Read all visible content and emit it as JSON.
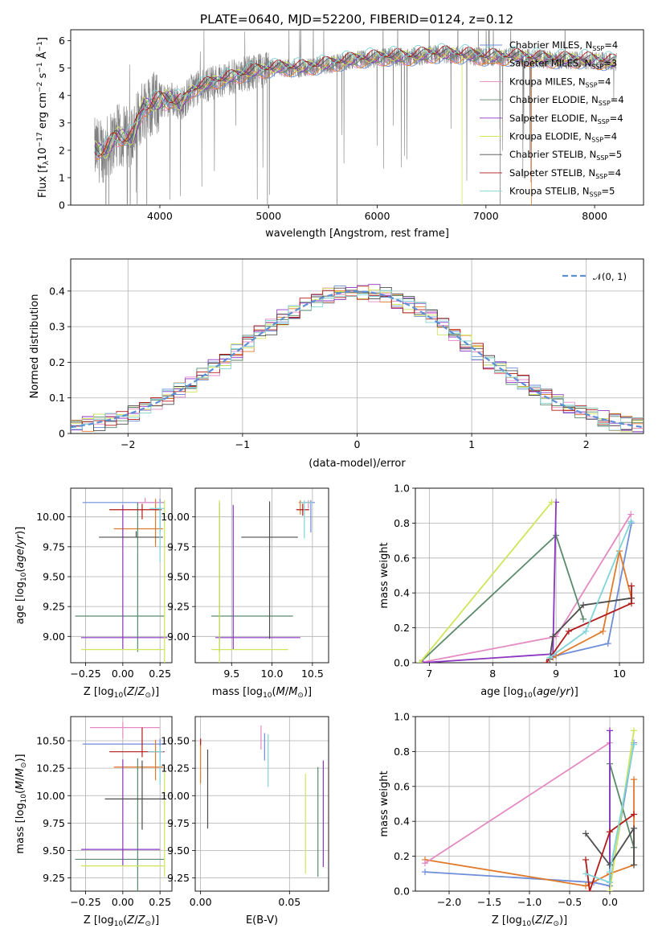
{
  "figure": {
    "title": "PLATE=0640, MJD=52200, FIBERID=0124, z=0.12"
  },
  "colors": [
    "#6f8ed8",
    "#e07a2b",
    "#e58ac3",
    "#5b8a6b",
    "#8b35c3",
    "#cfe55a",
    "#4d4d4d",
    "#b21a1a",
    "#7fd4d8"
  ],
  "spec_color": "#808080",
  "chart_data": [
    {
      "id": "spectrum",
      "type": "line",
      "title": "PLATE=0640, MJD=52200, FIBERID=0124, z=0.12",
      "xlabel": "wavelength [Angstrom, rest frame]",
      "ylabel": "Flux [f_λ 10^-17 erg cm^-2 s^-1 Å^-1]",
      "xlim": [
        3180,
        8450
      ],
      "ylim": [
        0,
        6.4
      ],
      "xticks": [
        4000,
        5000,
        6000,
        7000,
        8000
      ],
      "yticks": [
        0,
        1,
        2,
        3,
        4,
        5,
        6
      ],
      "legend": "top-right",
      "continuum_knots": [
        [
          3400,
          2.0
        ],
        [
          3500,
          2.0
        ],
        [
          3600,
          2.5
        ],
        [
          3750,
          2.5
        ],
        [
          3850,
          3.6
        ],
        [
          4100,
          3.9
        ],
        [
          4200,
          3.7
        ],
        [
          4300,
          4.2
        ],
        [
          4500,
          4.5
        ],
        [
          4700,
          4.7
        ],
        [
          4900,
          4.9
        ],
        [
          5100,
          5.0
        ],
        [
          5300,
          5.0
        ],
        [
          5500,
          5.1
        ],
        [
          5800,
          5.3
        ],
        [
          6100,
          5.4
        ],
        [
          6300,
          5.4
        ],
        [
          6500,
          5.5
        ],
        [
          6700,
          5.5
        ],
        [
          7000,
          5.4
        ],
        [
          7300,
          5.4
        ],
        [
          7600,
          5.3
        ],
        [
          7900,
          5.3
        ],
        [
          8200,
          5.2
        ]
      ],
      "series": [
        {
          "name": "Chabrier MILES, N_SSP=4"
        },
        {
          "name": "Salpeter MILES, N_SSP=3"
        },
        {
          "name": "Kroupa MILES, N_SSP=4"
        },
        {
          "name": "Chabrier ELODIE, N_SSP=4"
        },
        {
          "name": "Salpeter ELODIE, N_SSP=4"
        },
        {
          "name": "Kroupa ELODIE, N_SSP=4"
        },
        {
          "name": "Chabrier STELIB, N_SSP=5"
        },
        {
          "name": "Salpeter STELIB, N_SSP=4"
        },
        {
          "name": "Kroupa STELIB, N_SSP=5"
        }
      ]
    },
    {
      "id": "residuals",
      "type": "step",
      "xlabel": "(data-model)/error",
      "ylabel": "Normed distribution",
      "xlim": [
        -2.5,
        2.5
      ],
      "ylim": [
        0,
        0.49
      ],
      "xticks": [
        -2,
        -1,
        0,
        1,
        2
      ],
      "yticks": [
        0.0,
        0.1,
        0.2,
        0.3,
        0.4
      ],
      "grid": true,
      "legend": "top-right",
      "gaussian_label": "𝒩(0, 1)",
      "bin_width": 0.1
    },
    {
      "id": "age-Z",
      "type": "errorbar",
      "xlabel": "Z [log10(Z/Z⊙)]",
      "ylabel": "age [log10(age/yr)]",
      "xlim": [
        -0.35,
        0.33
      ],
      "ylim": [
        8.78,
        10.24
      ],
      "xticks": [
        -0.25,
        0.0,
        0.25
      ],
      "xtick_labels": [
        "−0.25",
        "0.00",
        "0.25"
      ],
      "yticks": [
        9.0,
        9.25,
        9.5,
        9.75,
        10.0
      ],
      "ytick_labels": [
        "9.00",
        "9.25",
        "9.50",
        "9.75",
        "10.00"
      ],
      "grid": true,
      "points": [
        {
          "x": 0.25,
          "y": 10.12,
          "xerr": [
            0.52,
            0.03
          ],
          "yerr": [
            0.25,
            0.03
          ]
        },
        {
          "x": 0.22,
          "y": 9.9,
          "xerr": [
            0.28,
            0.05
          ],
          "yerr": [
            0.15,
            0.25
          ]
        },
        {
          "x": 0.15,
          "y": 10.12,
          "xerr": [
            0.05,
            0.12
          ],
          "yerr": [
            0.0,
            0.04
          ]
        },
        {
          "x": 0.1,
          "y": 9.17,
          "xerr": [
            0.42,
            0.18
          ],
          "yerr": [
            0.3,
            0.95
          ]
        },
        {
          "x": 0.0,
          "y": 8.99,
          "xerr": [
            0.28,
            0.3
          ],
          "yerr": [
            0.1,
            1.11
          ]
        },
        {
          "x": 0.28,
          "y": 8.89,
          "xerr": [
            0.56,
            0.0
          ],
          "yerr": [
            0.15,
            1.25
          ]
        },
        {
          "x": 0.09,
          "y": 9.83,
          "xerr": [
            0.25,
            0.18
          ],
          "yerr": [
            0.0,
            0.05
          ]
        },
        {
          "x": 0.13,
          "y": 10.06,
          "xerr": [
            0.22,
            0.13
          ],
          "yerr": [
            0.08,
            0.05
          ]
        },
        {
          "x": 0.25,
          "y": 10.07,
          "xerr": [
            0.07,
            0.03
          ],
          "yerr": [
            0.45,
            0.05
          ]
        }
      ]
    },
    {
      "id": "age-mass",
      "type": "errorbar",
      "xlabel": "mass [log10(M/M⊙)]",
      "xlim": [
        9.05,
        10.7
      ],
      "ylim": [
        8.78,
        10.24
      ],
      "xticks": [
        9.5,
        10.0,
        10.5
      ],
      "xtick_labels": [
        "9.5",
        "10.0",
        "10.5"
      ],
      "yticks": [
        9.0,
        9.25,
        9.5,
        9.75,
        10.0
      ],
      "ytick_labels": [
        "9.00",
        "9.25",
        "9.50",
        "9.75",
        "10.00"
      ],
      "grid": true,
      "points": [
        {
          "x": 10.48,
          "y": 10.12,
          "xerr": [
            0.08,
            0.05
          ],
          "yerr": [
            0.25,
            0.02
          ]
        },
        {
          "x": 10.35,
          "y": 10.12,
          "xerr": [
            0.02,
            0.15
          ],
          "yerr": [
            0.1,
            0.02
          ]
        },
        {
          "x": 10.45,
          "y": 10.12,
          "xerr": [
            0.1,
            0.05
          ],
          "yerr": [
            0.05,
            0.02
          ]
        },
        {
          "x": 9.35,
          "y": 9.17,
          "xerr": [
            0.1,
            0.91
          ],
          "yerr": [
            0.3,
            0.95
          ]
        },
        {
          "x": 9.52,
          "y": 8.99,
          "xerr": [
            0.22,
            0.83
          ],
          "yerr": [
            0.1,
            1.11
          ]
        },
        {
          "x": 9.35,
          "y": 8.89,
          "xerr": [
            0.1,
            0.85
          ],
          "yerr": [
            0.11,
            1.25
          ]
        },
        {
          "x": 9.97,
          "y": 9.83,
          "xerr": [
            0.35,
            0.35
          ],
          "yerr": [
            0.85,
            0.3
          ]
        },
        {
          "x": 10.38,
          "y": 10.06,
          "xerr": [
            0.08,
            0.08
          ],
          "yerr": [
            0.05,
            0.05
          ]
        },
        {
          "x": 10.4,
          "y": 10.12,
          "xerr": [
            0.05,
            0.1
          ],
          "yerr": [
            0.3,
            0.02
          ]
        }
      ]
    },
    {
      "id": "mw-age",
      "type": "line",
      "xlabel": "age [log10(age/yr)]",
      "ylabel": "mass weight",
      "xlim": [
        6.78,
        10.38
      ],
      "ylim": [
        0,
        1.0
      ],
      "xticks": [
        7,
        8,
        9,
        10
      ],
      "xtick_labels": [
        "7",
        "8",
        "9",
        "10"
      ],
      "yticks": [
        0.0,
        0.2,
        0.4,
        0.6,
        0.8,
        1.0
      ],
      "ytick_labels": [
        "0.0",
        "0.2",
        "0.4",
        "0.6",
        "0.8",
        "1.0"
      ],
      "grid": true,
      "series": [
        {
          "points": [
            [
              9.0,
              0.04
            ],
            [
              9.82,
              0.11
            ],
            [
              10.19,
              0.8
            ]
          ]
        },
        {
          "points": [
            [
              8.95,
              0.03
            ],
            [
              9.74,
              0.18
            ],
            [
              10.0,
              0.64
            ],
            [
              10.19,
              0.37
            ]
          ]
        },
        {
          "points": [
            [
              6.85,
              0.0
            ],
            [
              9.0,
              0.15
            ],
            [
              10.18,
              0.85
            ]
          ]
        },
        {
          "points": [
            [
              6.85,
              0.0
            ],
            [
              9.0,
              0.73
            ],
            [
              9.43,
              0.25
            ]
          ]
        },
        {
          "points": [
            [
              6.9,
              0.0
            ],
            [
              8.95,
              0.05
            ],
            [
              9.0,
              0.92
            ]
          ]
        },
        {
          "points": [
            [
              6.85,
              0.0
            ],
            [
              8.93,
              0.92
            ]
          ]
        },
        {
          "points": [
            [
              8.9,
              0.02
            ],
            [
              8.95,
              0.15
            ],
            [
              9.43,
              0.33
            ],
            [
              10.19,
              0.37
            ]
          ]
        },
        {
          "points": [
            [
              8.85,
              0.0
            ],
            [
              9.2,
              0.18
            ],
            [
              10.19,
              0.34
            ],
            [
              10.19,
              0.44
            ]
          ]
        },
        {
          "points": [
            [
              8.9,
              0.03
            ],
            [
              9.47,
              0.18
            ],
            [
              10.18,
              0.81
            ]
          ]
        }
      ]
    },
    {
      "id": "mass-Z",
      "type": "errorbar",
      "xlabel": "Z [log10(Z/Z⊙)]",
      "ylabel": "mass [log10(M/M⊙)]",
      "xlim": [
        -0.35,
        0.33
      ],
      "ylim": [
        9.13,
        10.72
      ],
      "xticks": [
        -0.25,
        0.0,
        0.25
      ],
      "xtick_labels": [
        "−0.25",
        "0.00",
        "0.25"
      ],
      "yticks": [
        9.25,
        9.5,
        9.75,
        10.0,
        10.25,
        10.5
      ],
      "ytick_labels": [
        "9.25",
        "9.50",
        "9.75",
        "10.00",
        "10.25",
        "10.50"
      ],
      "grid": true,
      "points": [
        {
          "x": 0.25,
          "y": 10.47,
          "xerr": [
            0.52,
            0.03
          ],
          "yerr": [
            0.15,
            0.05
          ]
        },
        {
          "x": 0.22,
          "y": 10.26,
          "xerr": [
            0.28,
            0.05
          ],
          "yerr": [
            0.12,
            0.25
          ]
        },
        {
          "x": 0.0,
          "y": 10.62,
          "xerr": [
            0.22,
            0.25
          ],
          "yerr": [
            0.1,
            0.05
          ]
        },
        {
          "x": 0.1,
          "y": 9.42,
          "xerr": [
            0.42,
            0.18
          ],
          "yerr": [
            0.3,
            0.92
          ]
        },
        {
          "x": 0.0,
          "y": 9.51,
          "xerr": [
            0.28,
            0.25
          ],
          "yerr": [
            0.15,
            0.82
          ]
        },
        {
          "x": 0.28,
          "y": 9.36,
          "xerr": [
            0.56,
            0.0
          ],
          "yerr": [
            0.1,
            0.85
          ]
        },
        {
          "x": 0.13,
          "y": 9.97,
          "xerr": [
            0.25,
            0.15
          ],
          "yerr": [
            0.28,
            0.35
          ]
        },
        {
          "x": 0.13,
          "y": 10.4,
          "xerr": [
            0.22,
            0.15
          ],
          "yerr": [
            0.05,
            0.22
          ]
        },
        {
          "x": 0.25,
          "y": 10.4,
          "xerr": [
            0.08,
            0.02
          ],
          "yerr": [
            0.3,
            0.05
          ]
        }
      ]
    },
    {
      "id": "mass-EBV",
      "type": "errorbar",
      "xlabel": "E(B-V)",
      "xlim": [
        -0.003,
        0.072
      ],
      "ylim": [
        9.13,
        10.72
      ],
      "xticks": [
        0.0,
        0.05
      ],
      "xtick_labels": [
        "0.00",
        "0.05"
      ],
      "yticks": [
        9.25,
        9.5,
        9.75,
        10.0,
        10.25,
        10.5
      ],
      "ytick_labels": [
        "9.25",
        "9.50",
        "9.75",
        "10.00",
        "10.25",
        "10.50"
      ],
      "grid": true,
      "points": [
        {
          "x": 0.036,
          "y": 10.47,
          "xerr": [
            0,
            0
          ],
          "yerr": [
            0.15,
            0.1
          ]
        },
        {
          "x": 0.0,
          "y": 10.26,
          "xerr": [
            0,
            0
          ],
          "yerr": [
            0.15,
            0.25
          ]
        },
        {
          "x": 0.034,
          "y": 10.52,
          "xerr": [
            0,
            0
          ],
          "yerr": [
            0.1,
            0.12
          ]
        },
        {
          "x": 0.066,
          "y": 9.76,
          "xerr": [
            0,
            0
          ],
          "yerr": [
            0.5,
            0.5
          ]
        },
        {
          "x": 0.069,
          "y": 9.83,
          "xerr": [
            0,
            0
          ],
          "yerr": [
            0.48,
            0.49
          ]
        },
        {
          "x": 0.059,
          "y": 9.74,
          "xerr": [
            0,
            0
          ],
          "yerr": [
            0.45,
            0.46
          ]
        },
        {
          "x": 0.004,
          "y": 10.12,
          "xerr": [
            0,
            0
          ],
          "yerr": [
            0.42,
            0.3
          ]
        },
        {
          "x": 0.0,
          "y": 10.49,
          "xerr": [
            0,
            0
          ],
          "yerr": [
            0.03,
            0.03
          ]
        },
        {
          "x": 0.038,
          "y": 10.28,
          "xerr": [
            0,
            0
          ],
          "yerr": [
            0.2,
            0.28
          ]
        }
      ]
    },
    {
      "id": "mw-Z",
      "type": "line",
      "xlabel": "Z [log10(Z/Z⊙)]",
      "ylabel": "mass weight",
      "xlim": [
        -2.42,
        0.42
      ],
      "ylim": [
        0,
        1.0
      ],
      "xticks": [
        -2.0,
        -1.5,
        -1.0,
        -0.5,
        0.0
      ],
      "xtick_labels": [
        "−2.0",
        "−1.5",
        "−1.0",
        "−0.5",
        "0.0"
      ],
      "yticks": [
        0.0,
        0.2,
        0.4,
        0.6,
        0.8,
        1.0
      ],
      "ytick_labels": [
        "0.0",
        "0.2",
        "0.4",
        "0.6",
        "0.8",
        "1.0"
      ],
      "grid": true,
      "series": [
        {
          "points": [
            [
              -2.3,
              0.11
            ],
            [
              -0.2,
              0.05
            ],
            [
              0.0,
              0.03
            ],
            [
              0.3,
              0.85
            ]
          ]
        },
        {
          "points": [
            [
              -2.3,
              0.18
            ],
            [
              -0.3,
              0.03
            ],
            [
              0.0,
              0.1
            ],
            [
              0.3,
              0.15
            ],
            [
              0.3,
              0.64
            ]
          ]
        },
        {
          "points": [
            [
              -2.3,
              0.16
            ],
            [
              0.0,
              0.85
            ]
          ]
        },
        {
          "points": [
            [
              0.0,
              0.0
            ],
            [
              0.0,
              0.73
            ],
            [
              0.3,
              0.25
            ]
          ]
        },
        {
          "points": [
            [
              0.0,
              0.0
            ],
            [
              0.0,
              0.92
            ],
            [
              0.0,
              0.05
            ]
          ]
        },
        {
          "points": [
            [
              0.0,
              0.0
            ],
            [
              0.3,
              0.92
            ]
          ]
        },
        {
          "points": [
            [
              -0.3,
              0.33
            ],
            [
              0.0,
              0.15
            ],
            [
              0.3,
              0.36
            ],
            [
              0.3,
              0.15
            ]
          ]
        },
        {
          "points": [
            [
              -0.3,
              0.18
            ],
            [
              -0.25,
              0.0
            ],
            [
              0.0,
              0.34
            ],
            [
              0.3,
              0.44
            ]
          ]
        },
        {
          "points": [
            [
              -0.3,
              0.1
            ],
            [
              0.0,
              0.05
            ],
            [
              0.0,
              0.11
            ],
            [
              0.3,
              0.84
            ]
          ]
        }
      ]
    }
  ]
}
